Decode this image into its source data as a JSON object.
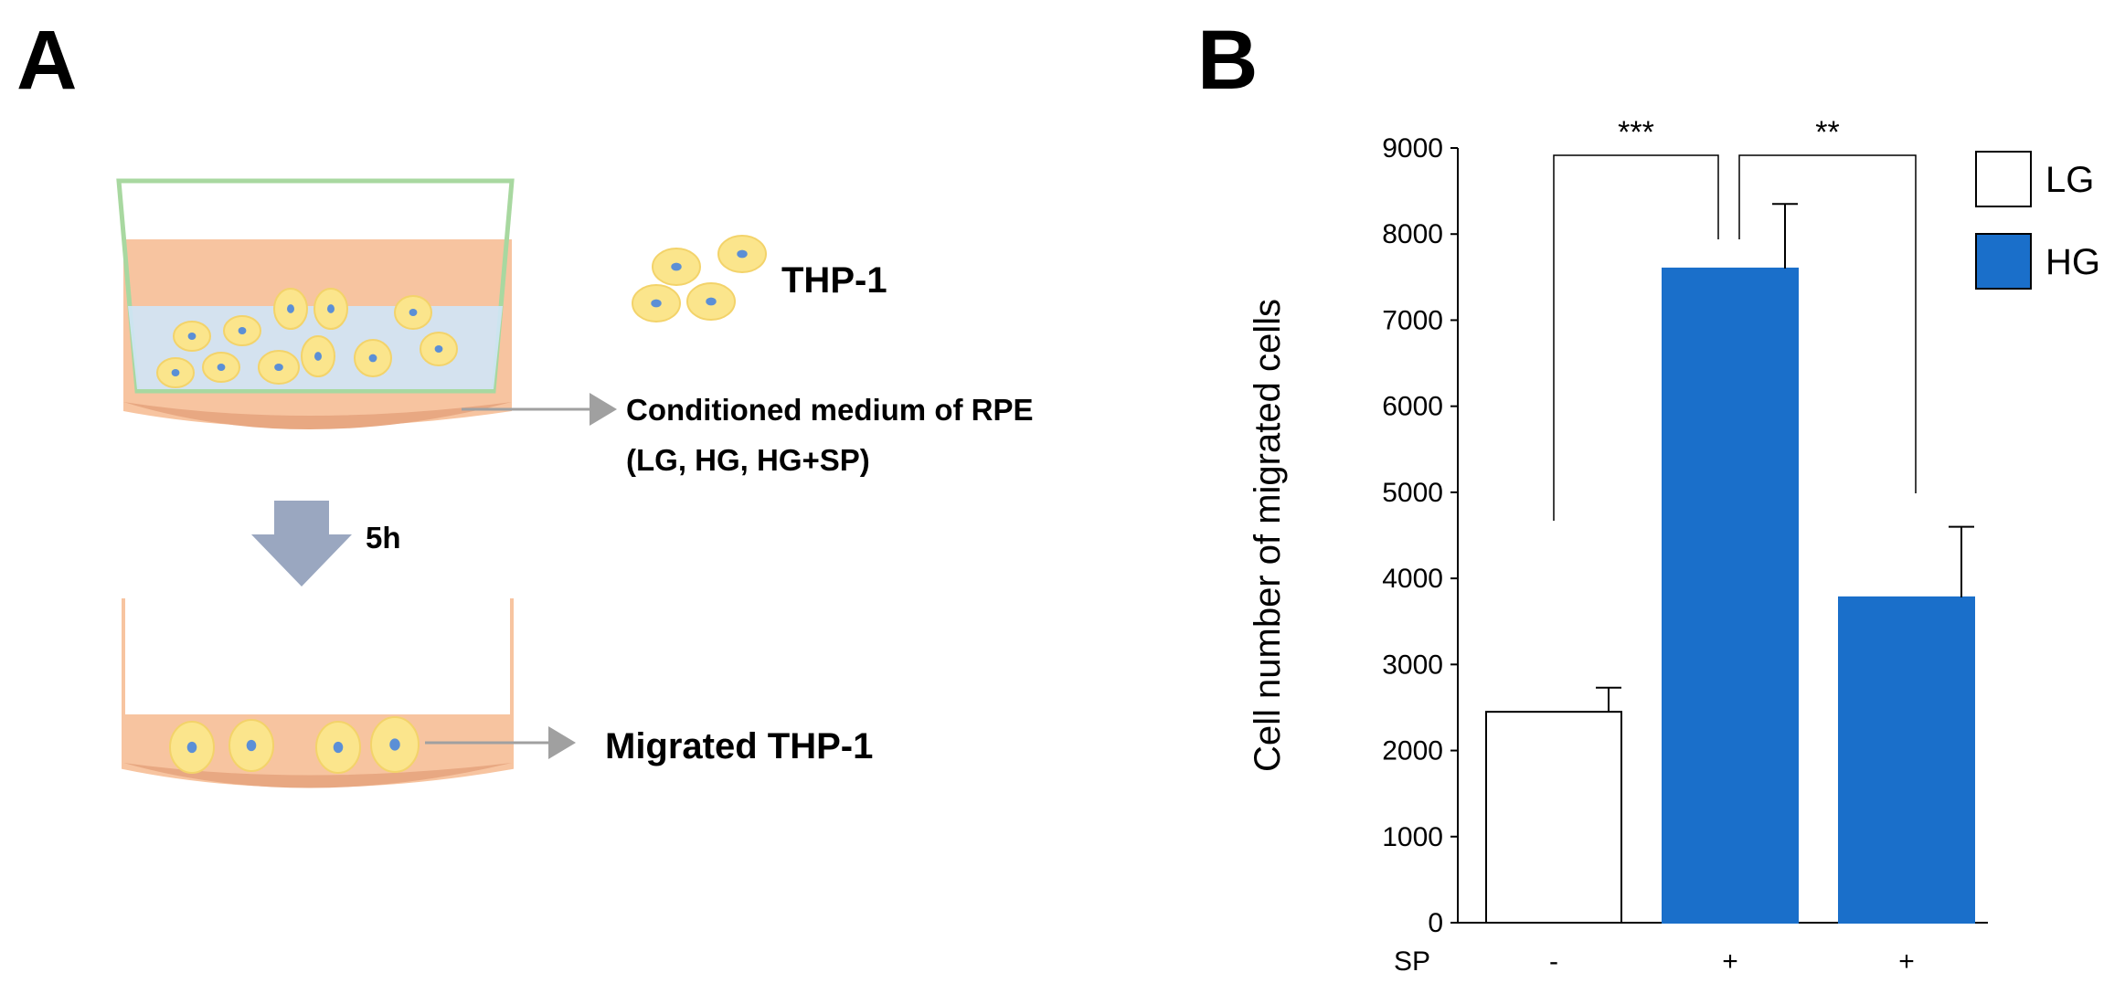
{
  "panel_a": {
    "letter": "A",
    "labels": {
      "thp1": "THP-1",
      "conditioned_line1": "Conditioned medium of RPE",
      "conditioned_line2": "(LG, HG, HG+SP)",
      "time": "5h",
      "migrated": "Migrated THP-1"
    },
    "colors": {
      "dish": "#f7c4a0",
      "insert_border": "#a8d8a0",
      "medium": "#cfe6f7",
      "cell_fill": "#fbe58c",
      "cell_nucleus": "#5b8fd6",
      "arrow": "#9aa7c0"
    }
  },
  "panel_b": {
    "letter": "B"
  },
  "chart_data": {
    "type": "bar",
    "title": "",
    "ylabel": "Cell number of migrated cells",
    "xlabel": "",
    "ylim": [
      0,
      9000
    ],
    "yticks": [
      0,
      1000,
      2000,
      3000,
      4000,
      5000,
      6000,
      7000,
      8000,
      9000
    ],
    "x_row_label": "SP",
    "bars": [
      {
        "category": "-",
        "series": "LG",
        "value": 2450,
        "error": 280
      },
      {
        "category": "+",
        "series": "HG",
        "value": 7600,
        "error": 750
      },
      {
        "category": "+",
        "series": "HG",
        "value": 3780,
        "error": 820
      }
    ],
    "legend": [
      {
        "name": "LG",
        "color": "#ffffff"
      },
      {
        "name": "HG",
        "color": "#1a6fca"
      }
    ],
    "significance": [
      {
        "from": 0,
        "to": 1,
        "label": "***"
      },
      {
        "from": 1,
        "to": 2,
        "label": "**"
      }
    ],
    "legend_position": "top-right"
  }
}
